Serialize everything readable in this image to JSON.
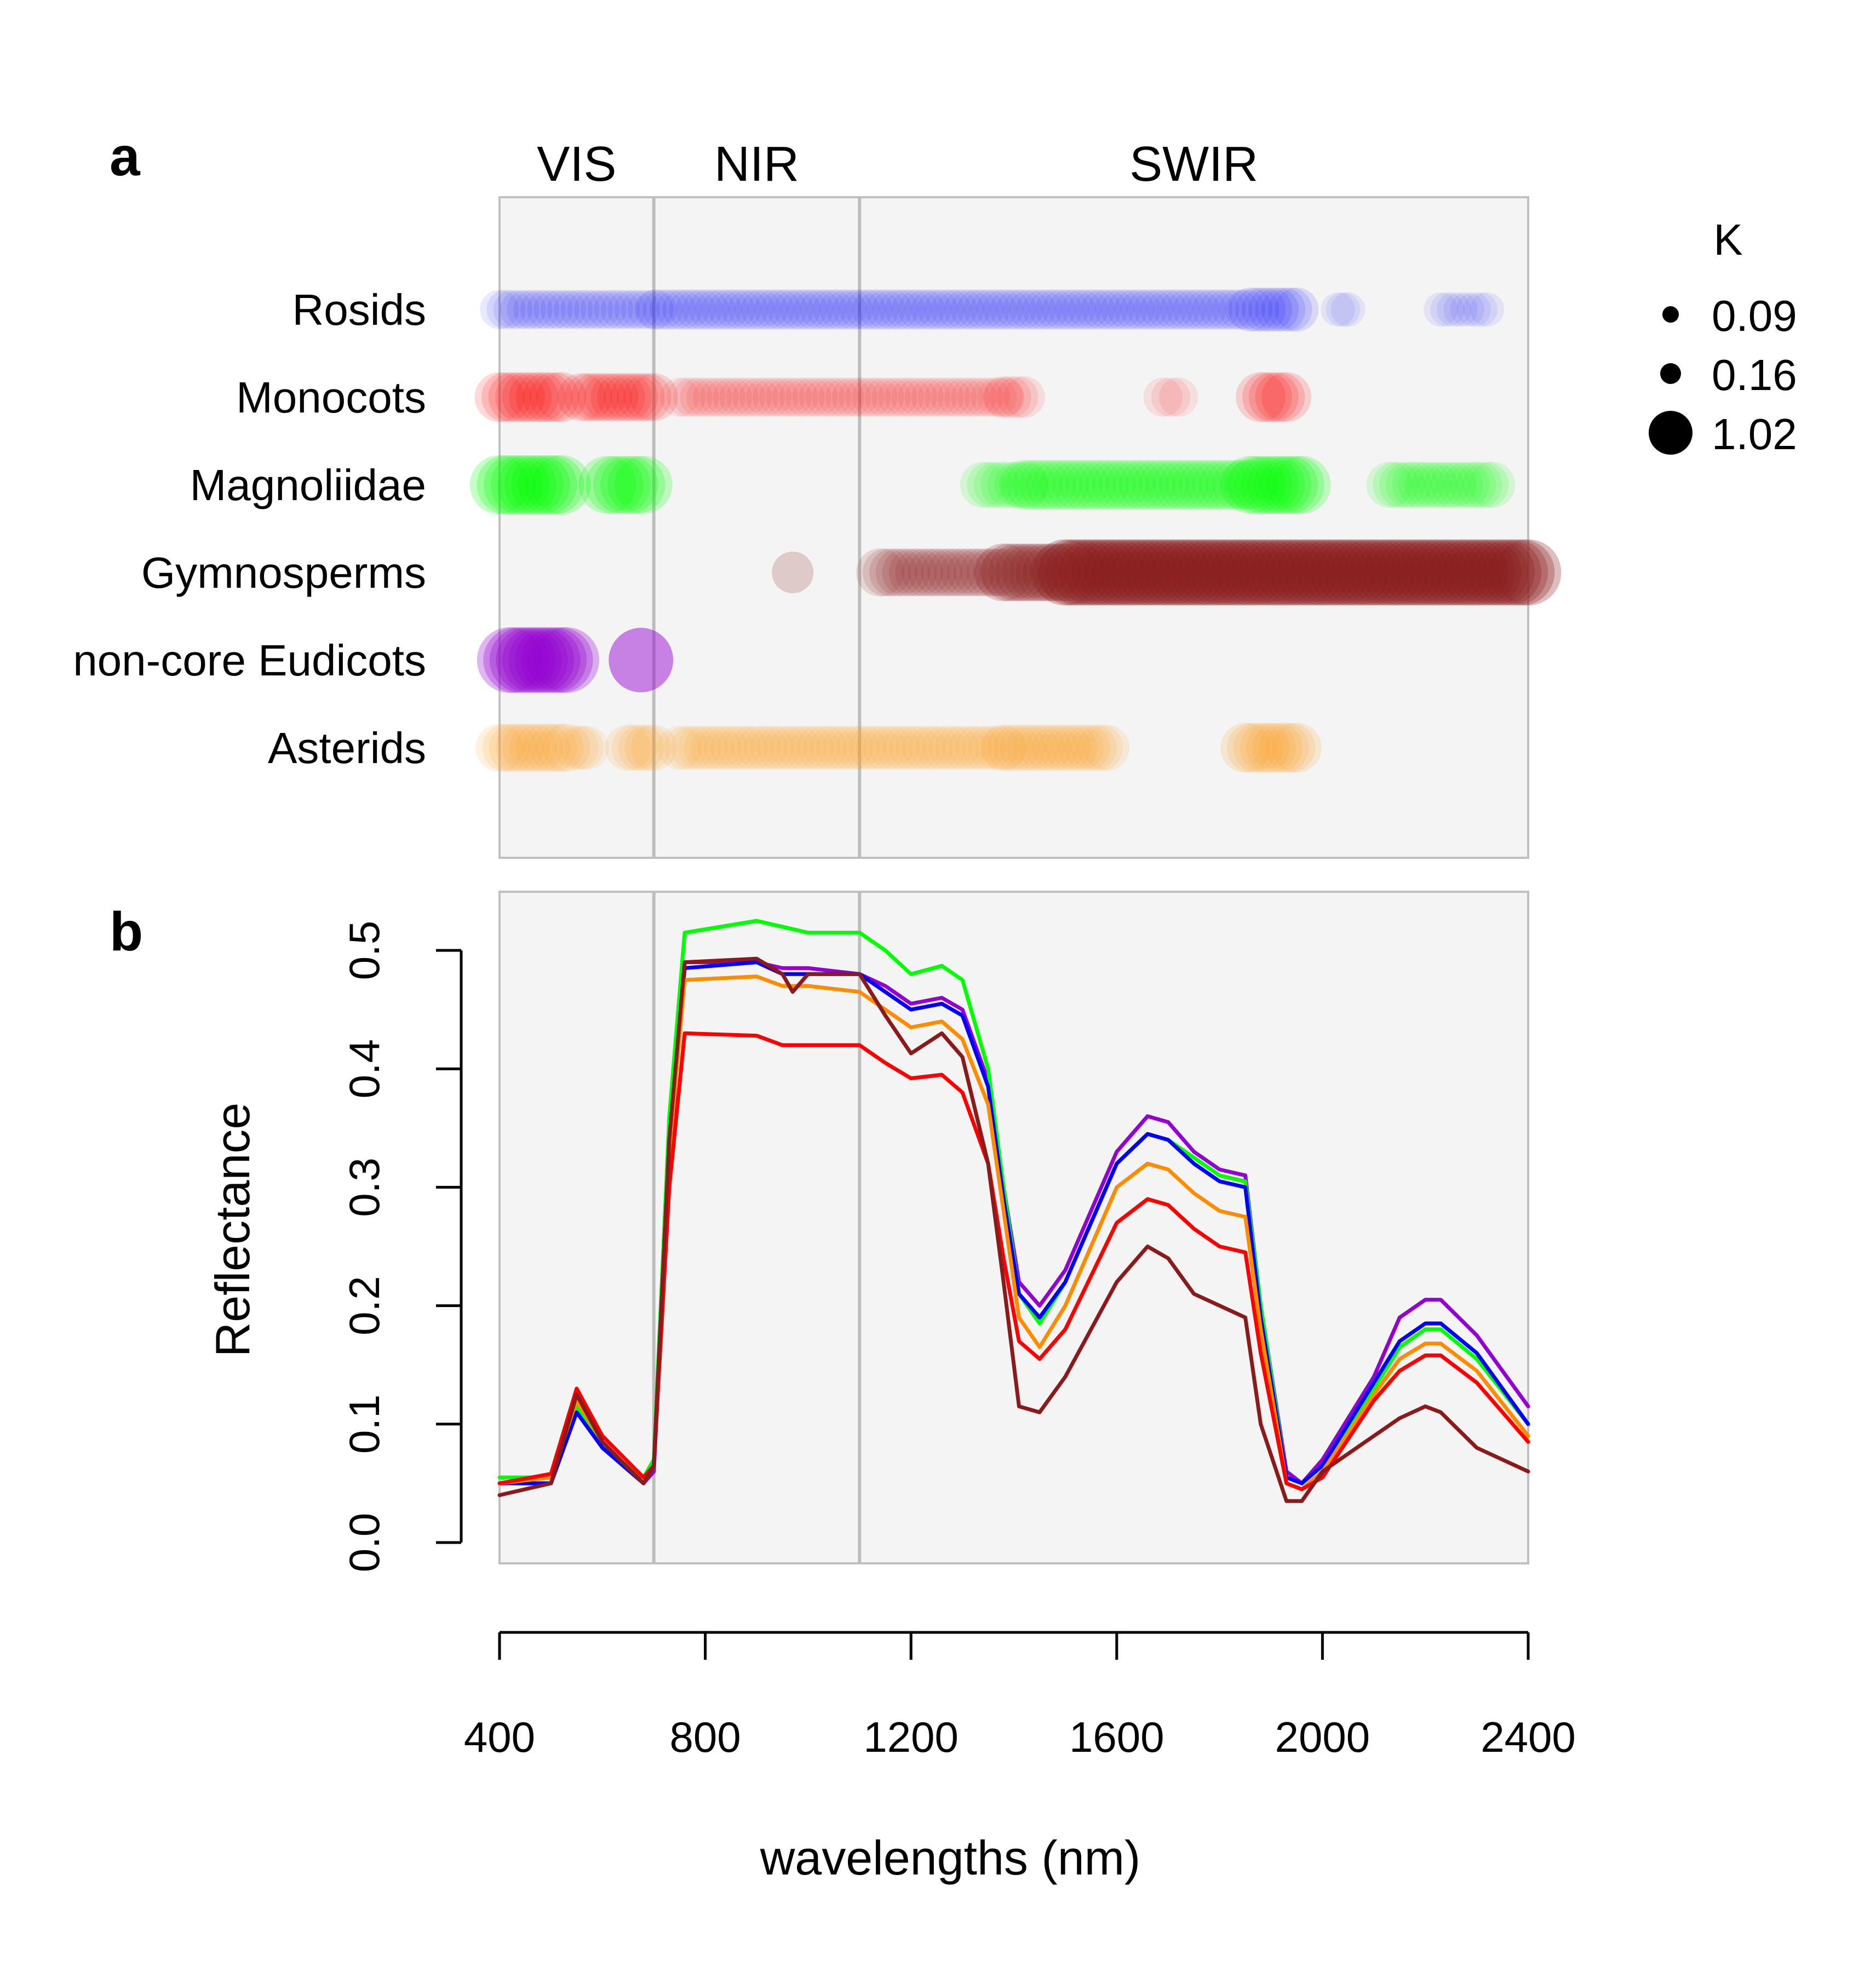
{
  "panel_a": {
    "letter": "a"
  },
  "panel_b": {
    "letter": "b"
  },
  "chart_data": [
    {
      "type": "scatter",
      "panel": "a",
      "xlim": [
        400,
        2400
      ],
      "regions": [
        {
          "label": "VIS",
          "start": 400,
          "end": 700
        },
        {
          "label": "NIR",
          "start": 700,
          "end": 1100
        },
        {
          "label": "SWIR",
          "start": 1100,
          "end": 2400
        }
      ],
      "legend": {
        "title": "K",
        "position": "top-right",
        "entries": [
          {
            "label": "0.09",
            "k": 0.09
          },
          {
            "label": "0.16",
            "k": 0.16
          },
          {
            "label": "1.02",
            "k": 1.02
          }
        ]
      },
      "groups": [
        {
          "name": "Rosids",
          "color": "#0000ff",
          "segments": [
            {
              "start": 400,
              "end": 700,
              "k": 0.2
            },
            {
              "start": 705,
              "end": 1850,
              "k": 0.22
            },
            {
              "start": 1860,
              "end": 1950,
              "k": 0.3
            },
            {
              "start": 2030,
              "end": 2050,
              "k": 0.12
            },
            {
              "start": 2230,
              "end": 2320,
              "k": 0.12
            }
          ]
        },
        {
          "name": "Monocots",
          "color": "#ff0000",
          "segments": [
            {
              "start": 400,
              "end": 520,
              "k": 0.45
            },
            {
              "start": 560,
              "end": 700,
              "k": 0.4
            },
            {
              "start": 750,
              "end": 1380,
              "k": 0.2
            },
            {
              "start": 1380,
              "end": 1420,
              "k": 0.25
            },
            {
              "start": 1690,
              "end": 1720,
              "k": 0.2
            },
            {
              "start": 1880,
              "end": 1930,
              "k": 0.45
            }
          ]
        },
        {
          "name": "Magnoliidae",
          "color": "#00ff00",
          "segments": [
            {
              "start": 400,
              "end": 520,
              "k": 0.75
            },
            {
              "start": 610,
              "end": 680,
              "k": 0.7
            },
            {
              "start": 1340,
              "end": 1420,
              "k": 0.35
            },
            {
              "start": 1420,
              "end": 1860,
              "k": 0.45
            },
            {
              "start": 1860,
              "end": 1960,
              "k": 0.7
            },
            {
              "start": 2130,
              "end": 2330,
              "k": 0.35
            }
          ]
        },
        {
          "name": "Gymnosperms",
          "color": "#8b1a1a",
          "segments": [
            {
              "start": 970,
              "end": 970,
              "k": 0.25
            },
            {
              "start": 1140,
              "end": 1380,
              "k": 0.4
            },
            {
              "start": 1380,
              "end": 1500,
              "k": 0.7
            },
            {
              "start": 1500,
              "end": 2400,
              "k": 1.02
            }
          ]
        },
        {
          "name": "non-core Eudicots",
          "color": "#9400d3",
          "segments": [
            {
              "start": 420,
              "end": 530,
              "k": 1.0
            },
            {
              "start": 675,
              "end": 675,
              "k": 0.95
            }
          ]
        },
        {
          "name": "Asterids",
          "color": "#ff9a1a",
          "segments": [
            {
              "start": 400,
              "end": 530,
              "k": 0.4
            },
            {
              "start": 550,
              "end": 570,
              "k": 0.3
            },
            {
              "start": 650,
              "end": 700,
              "k": 0.35
            },
            {
              "start": 750,
              "end": 1380,
              "k": 0.3
            },
            {
              "start": 1380,
              "end": 1580,
              "k": 0.35
            },
            {
              "start": 1850,
              "end": 1950,
              "k": 0.45
            }
          ]
        }
      ]
    },
    {
      "type": "line",
      "panel": "b",
      "xlabel": "wavelengths (nm)",
      "ylabel": "Reflectance",
      "xlim": [
        400,
        2400
      ],
      "ylim": [
        0.0,
        0.5
      ],
      "xticks": [
        400,
        800,
        1200,
        1600,
        2000,
        2400
      ],
      "yticks": [
        0.0,
        0.1,
        0.2,
        0.3,
        0.4,
        0.5
      ],
      "xtick_labels": [
        "400",
        "800",
        "1200",
        "1600",
        "2000",
        "2400"
      ],
      "ytick_labels": [
        "0.0",
        "0.1",
        "0.2",
        "0.3",
        "0.4",
        "0.5"
      ],
      "region_boundaries": [
        700,
        1100
      ],
      "grid": false,
      "series": [
        {
          "color": "#9400d3",
          "x": [
            400,
            500,
            550,
            600,
            680,
            700,
            730,
            760,
            900,
            950,
            1000,
            1100,
            1150,
            1200,
            1260,
            1300,
            1350,
            1380,
            1410,
            1450,
            1500,
            1600,
            1660,
            1700,
            1750,
            1800,
            1850,
            1880,
            1930,
            1960,
            2000,
            2100,
            2150,
            2200,
            2230,
            2300,
            2400
          ],
          "y": [
            0.05,
            0.05,
            0.11,
            0.08,
            0.05,
            0.06,
            0.32,
            0.49,
            0.49,
            0.485,
            0.485,
            0.48,
            0.47,
            0.455,
            0.46,
            0.45,
            0.39,
            0.3,
            0.22,
            0.2,
            0.23,
            0.33,
            0.36,
            0.355,
            0.33,
            0.315,
            0.31,
            0.2,
            0.06,
            0.05,
            0.07,
            0.14,
            0.19,
            0.205,
            0.205,
            0.175,
            0.115
          ]
        },
        {
          "color": "#00ff00",
          "x": [
            400,
            500,
            550,
            600,
            680,
            700,
            730,
            760,
            900,
            950,
            1000,
            1100,
            1150,
            1200,
            1260,
            1300,
            1350,
            1380,
            1410,
            1450,
            1500,
            1600,
            1660,
            1700,
            1750,
            1800,
            1850,
            1880,
            1930,
            1960,
            2000,
            2100,
            2150,
            2200,
            2230,
            2300,
            2400
          ],
          "y": [
            0.055,
            0.055,
            0.115,
            0.08,
            0.055,
            0.07,
            0.36,
            0.515,
            0.525,
            0.52,
            0.515,
            0.515,
            0.5,
            0.48,
            0.487,
            0.475,
            0.4,
            0.3,
            0.21,
            0.185,
            0.22,
            0.32,
            0.345,
            0.34,
            0.325,
            0.31,
            0.305,
            0.2,
            0.055,
            0.05,
            0.065,
            0.13,
            0.165,
            0.18,
            0.18,
            0.155,
            0.1
          ]
        },
        {
          "color": "#0000ff",
          "x": [
            400,
            500,
            550,
            600,
            680,
            700,
            730,
            760,
            900,
            950,
            1000,
            1100,
            1150,
            1200,
            1260,
            1300,
            1350,
            1380,
            1410,
            1450,
            1500,
            1600,
            1660,
            1700,
            1750,
            1800,
            1850,
            1880,
            1930,
            1960,
            2000,
            2100,
            2150,
            2200,
            2230,
            2300,
            2400
          ],
          "y": [
            0.05,
            0.05,
            0.11,
            0.08,
            0.05,
            0.065,
            0.34,
            0.485,
            0.49,
            0.48,
            0.48,
            0.48,
            0.465,
            0.45,
            0.455,
            0.445,
            0.385,
            0.29,
            0.21,
            0.19,
            0.22,
            0.32,
            0.345,
            0.34,
            0.32,
            0.305,
            0.3,
            0.19,
            0.055,
            0.05,
            0.065,
            0.135,
            0.17,
            0.185,
            0.185,
            0.16,
            0.1
          ]
        },
        {
          "color": "#ff8c00",
          "x": [
            400,
            500,
            550,
            600,
            680,
            700,
            730,
            760,
            900,
            950,
            1000,
            1100,
            1150,
            1200,
            1260,
            1300,
            1350,
            1380,
            1410,
            1450,
            1500,
            1600,
            1660,
            1700,
            1750,
            1800,
            1850,
            1880,
            1930,
            1960,
            2000,
            2100,
            2150,
            2200,
            2230,
            2300,
            2400
          ],
          "y": [
            0.05,
            0.055,
            0.12,
            0.085,
            0.05,
            0.065,
            0.33,
            0.475,
            0.478,
            0.47,
            0.47,
            0.465,
            0.45,
            0.435,
            0.44,
            0.425,
            0.37,
            0.28,
            0.19,
            0.165,
            0.2,
            0.3,
            0.32,
            0.315,
            0.295,
            0.28,
            0.275,
            0.18,
            0.05,
            0.045,
            0.06,
            0.125,
            0.155,
            0.168,
            0.168,
            0.145,
            0.09
          ]
        },
        {
          "color": "#ff0000",
          "x": [
            400,
            500,
            550,
            600,
            680,
            700,
            730,
            760,
            900,
            950,
            1000,
            1100,
            1150,
            1200,
            1260,
            1300,
            1350,
            1380,
            1410,
            1450,
            1500,
            1600,
            1660,
            1700,
            1750,
            1800,
            1850,
            1880,
            1930,
            1960,
            2000,
            2100,
            2150,
            2200,
            2230,
            2300,
            2400
          ],
          "y": [
            0.05,
            0.058,
            0.13,
            0.09,
            0.055,
            0.065,
            0.3,
            0.43,
            0.428,
            0.42,
            0.42,
            0.42,
            0.405,
            0.392,
            0.395,
            0.38,
            0.32,
            0.24,
            0.17,
            0.155,
            0.18,
            0.27,
            0.29,
            0.285,
            0.265,
            0.25,
            0.245,
            0.16,
            0.05,
            0.045,
            0.055,
            0.12,
            0.145,
            0.158,
            0.158,
            0.135,
            0.085
          ]
        },
        {
          "color": "#8b1a1a",
          "x": [
            400,
            500,
            550,
            600,
            680,
            700,
            730,
            760,
            900,
            950,
            970,
            1000,
            1100,
            1150,
            1200,
            1260,
            1300,
            1350,
            1380,
            1410,
            1450,
            1500,
            1600,
            1660,
            1700,
            1750,
            1800,
            1850,
            1880,
            1930,
            1960,
            2000,
            2100,
            2150,
            2200,
            2230,
            2300,
            2400
          ],
          "y": [
            0.04,
            0.05,
            0.125,
            0.085,
            0.05,
            0.065,
            0.34,
            0.49,
            0.493,
            0.48,
            0.465,
            0.48,
            0.48,
            0.445,
            0.413,
            0.43,
            0.41,
            0.32,
            0.22,
            0.115,
            0.11,
            0.14,
            0.22,
            0.25,
            0.24,
            0.21,
            0.2,
            0.19,
            0.1,
            0.035,
            0.035,
            0.06,
            0.09,
            0.105,
            0.115,
            0.11,
            0.08,
            0.06
          ]
        }
      ]
    }
  ]
}
